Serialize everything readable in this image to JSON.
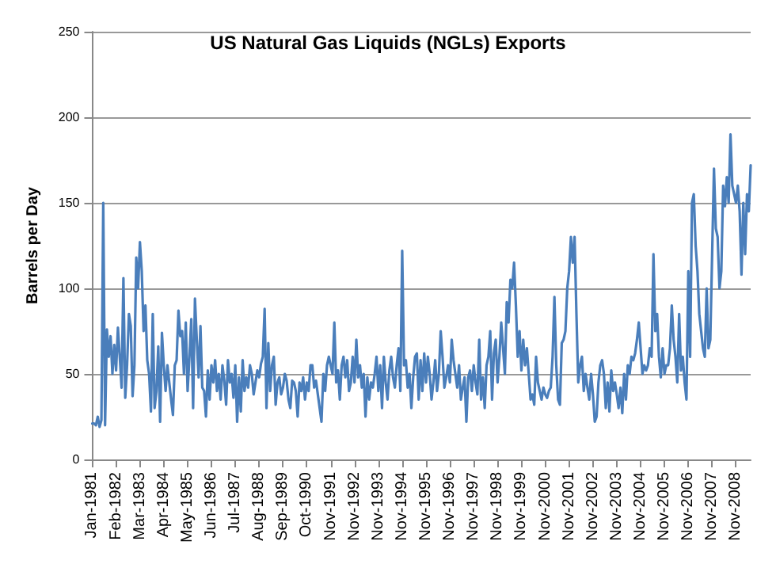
{
  "chart_data": {
    "type": "line",
    "title": "US Natural Gas Liquids (NGLs) Exports",
    "ylabel": "Barrels per Day",
    "ylim": [
      0,
      250
    ],
    "yticks": [
      0,
      50,
      100,
      150,
      200,
      250
    ],
    "grid": "y",
    "marker": "none",
    "line_style": "solid",
    "categories": [
      "Jan-1981",
      null,
      null,
      null,
      null,
      null,
      null,
      null,
      null,
      null,
      null,
      null,
      null,
      "Feb-1982",
      null,
      null,
      null,
      null,
      null,
      null,
      null,
      null,
      null,
      null,
      null,
      null,
      "Mar-1983",
      null,
      null,
      null,
      null,
      null,
      null,
      null,
      null,
      null,
      null,
      null,
      null,
      "Apr-1984",
      null,
      null,
      null,
      null,
      null,
      null,
      null,
      null,
      null,
      null,
      null,
      null,
      "May-1985",
      null,
      null,
      null,
      null,
      null,
      null,
      null,
      null,
      null,
      null,
      null,
      null,
      "Jun-1986",
      null,
      null,
      null,
      null,
      null,
      null,
      null,
      null,
      null,
      null,
      null,
      null,
      "Jul-1987",
      null,
      null,
      null,
      null,
      null,
      null,
      null,
      null,
      null,
      null,
      null,
      null,
      "Aug-1988",
      null,
      null,
      null,
      null,
      null,
      null,
      null,
      null,
      null,
      null,
      null,
      null,
      "Sep-1989",
      null,
      null,
      null,
      null,
      null,
      null,
      null,
      null,
      null,
      null,
      null,
      null,
      "Oct-1990",
      null,
      null,
      null,
      null,
      null,
      null,
      null,
      null,
      null,
      null,
      null,
      null,
      "Nov-1991",
      null,
      null,
      null,
      null,
      null,
      null,
      null,
      null,
      null,
      null,
      null,
      null,
      "Nov-1992",
      null,
      null,
      null,
      null,
      null,
      null,
      null,
      null,
      null,
      null,
      null,
      null,
      "Nov-1993",
      null,
      null,
      null,
      null,
      null,
      null,
      null,
      null,
      null,
      null,
      null,
      null,
      "Nov-1994",
      null,
      null,
      null,
      null,
      null,
      null,
      null,
      null,
      null,
      null,
      null,
      null,
      "Nov-1995",
      null,
      null,
      null,
      null,
      null,
      null,
      null,
      null,
      null,
      null,
      null,
      null,
      "Nov-1996",
      null,
      null,
      null,
      null,
      null,
      null,
      null,
      null,
      null,
      null,
      null,
      null,
      "Nov-1997",
      null,
      null,
      null,
      null,
      null,
      null,
      null,
      null,
      null,
      null,
      null,
      null,
      "Nov-1998",
      null,
      null,
      null,
      null,
      null,
      null,
      null,
      null,
      null,
      null,
      null,
      null,
      "Nov-1999",
      null,
      null,
      null,
      null,
      null,
      null,
      null,
      null,
      null,
      null,
      null,
      null,
      "Nov-2000",
      null,
      null,
      null,
      null,
      null,
      null,
      null,
      null,
      null,
      null,
      null,
      null,
      "Nov-2001",
      null,
      null,
      null,
      null,
      null,
      null,
      null,
      null,
      null,
      null,
      null,
      null,
      "Nov-2002",
      null,
      null,
      null,
      null,
      null,
      null,
      null,
      null,
      null,
      null,
      null,
      null,
      "Nov-2003",
      null,
      null,
      null,
      null,
      null,
      null,
      null,
      null,
      null,
      null,
      null,
      null,
      "Nov-2004",
      null,
      null,
      null,
      null,
      null,
      null,
      null,
      null,
      null,
      null,
      null,
      null,
      "Nov-2005",
      null,
      null,
      null,
      null,
      null,
      null,
      null,
      null,
      null,
      null,
      null,
      null,
      "Nov-2006",
      null,
      null,
      null,
      null,
      null,
      null,
      null,
      null,
      null,
      null,
      null,
      null,
      "Nov-2007",
      null,
      null,
      null,
      null,
      null,
      null,
      null,
      null,
      null,
      null,
      null,
      null,
      "Nov-2008",
      null,
      null,
      null,
      null,
      null,
      null,
      null,
      null
    ],
    "series": [
      {
        "color": "#4a7ebb",
        "values": [
          21,
          21,
          20,
          25,
          19,
          23,
          150,
          20,
          76,
          60,
          72,
          50,
          67,
          52,
          77,
          60,
          42,
          106,
          36,
          55,
          85,
          78,
          37,
          55,
          118,
          100,
          127,
          110,
          75,
          90,
          58,
          50,
          28,
          85,
          30,
          40,
          66,
          22,
          74,
          55,
          40,
          55,
          45,
          35,
          26,
          55,
          58,
          87,
          72,
          75,
          50,
          80,
          40,
          60,
          82,
          30,
          94,
          70,
          48,
          78,
          42,
          40,
          25,
          52,
          35,
          55,
          45,
          58,
          40,
          50,
          35,
          55,
          46,
          32,
          58,
          45,
          50,
          36,
          55,
          22,
          48,
          28,
          58,
          40,
          48,
          42,
          55,
          50,
          38,
          45,
          52,
          48,
          56,
          60,
          88,
          30,
          68,
          40,
          55,
          60,
          32,
          45,
          48,
          38,
          42,
          50,
          46,
          35,
          30,
          46,
          45,
          40,
          25,
          45,
          40,
          48,
          35,
          45,
          40,
          55,
          55,
          42,
          46,
          38,
          30,
          22,
          50,
          40,
          55,
          60,
          55,
          50,
          80,
          45,
          52,
          35,
          55,
          60,
          48,
          58,
          40,
          45,
          60,
          45,
          70,
          48,
          55,
          42,
          50,
          25,
          48,
          35,
          45,
          42,
          50,
          60,
          40,
          55,
          30,
          60,
          45,
          35,
          52,
          60,
          48,
          42,
          55,
          65,
          40,
          122,
          55,
          58,
          42,
          50,
          30,
          48,
          60,
          62,
          35,
          58,
          40,
          62,
          45,
          60,
          50,
          35,
          45,
          58,
          40,
          50,
          75,
          60,
          42,
          48,
          55,
          45,
          70,
          58,
          50,
          42,
          55,
          35,
          42,
          48,
          22,
          48,
          52,
          40,
          55,
          45,
          38,
          70,
          35,
          48,
          30,
          55,
          60,
          75,
          35,
          62,
          70,
          45,
          60,
          80,
          65,
          50,
          92,
          80,
          105,
          100,
          115,
          90,
          60,
          75,
          52,
          70,
          55,
          65,
          50,
          35,
          38,
          32,
          60,
          45,
          40,
          35,
          42,
          38,
          36,
          40,
          42,
          60,
          95,
          55,
          35,
          32,
          68,
          70,
          75,
          100,
          110,
          130,
          115,
          130,
          85,
          45,
          55,
          60,
          40,
          50,
          42,
          35,
          50,
          38,
          22,
          25,
          45,
          55,
          58,
          50,
          30,
          45,
          28,
          52,
          40,
          45,
          38,
          30,
          42,
          27,
          50,
          35,
          55,
          50,
          60,
          58,
          62,
          70,
          80,
          65,
          50,
          55,
          52,
          55,
          65,
          60,
          120,
          75,
          85,
          60,
          48,
          65,
          50,
          55,
          55,
          65,
          90,
          70,
          60,
          45,
          85,
          52,
          60,
          45,
          35,
          110,
          60,
          150,
          155,
          125,
          110,
          85,
          75,
          65,
          60,
          100,
          65,
          70,
          120,
          170,
          135,
          130,
          100,
          110,
          160,
          148,
          165,
          150,
          190,
          160,
          155,
          150,
          160,
          145,
          108,
          150,
          120,
          155,
          145,
          172
        ]
      }
    ]
  }
}
